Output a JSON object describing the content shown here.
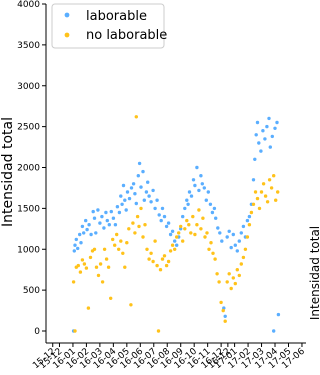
{
  "chart_data": {
    "type": "scatter",
    "xlabel": "",
    "ylabel": "Intensidad total",
    "right_ylabel": "Intensidad total",
    "ylim": [
      0,
      4000
    ],
    "yticks": [
      0,
      500,
      1000,
      1500,
      2000,
      2500,
      3000,
      3500,
      4000
    ],
    "x_tick_labels": [
      "15-12",
      "15-12",
      "16-01",
      "16-02",
      "16-03",
      "16-04",
      "16-05",
      "16-06",
      "16-07",
      "16-08",
      "16-09",
      "16-10",
      "16-11",
      "16-12",
      "16-12",
      "17-01",
      "17-02",
      "17-03",
      "17-04",
      "17-05",
      "17-06"
    ],
    "x_tick_months": [
      -1.0,
      -0.5,
      0.5,
      1.5,
      2.5,
      3.5,
      4.5,
      5.5,
      6.5,
      7.5,
      8.5,
      9.5,
      10.5,
      11.5,
      12.0,
      12.5,
      13.5,
      14.5,
      15.5,
      16.5,
      17.5
    ],
    "xlim_months": [
      -1.5,
      17.8
    ],
    "legend": {
      "position": "top-left"
    },
    "grid": false,
    "colors": {
      "laborable": "#5aaeff",
      "no_laborable": "#ffc21a"
    },
    "series": [
      {
        "name": "laborable",
        "color": "#5aaeff",
        "points": [
          [
            0.55,
            0
          ],
          [
            0.6,
            980
          ],
          [
            0.65,
            1050
          ],
          [
            0.75,
            1120
          ],
          [
            0.85,
            1010
          ],
          [
            1.0,
            1180
          ],
          [
            1.1,
            1080
          ],
          [
            1.2,
            1280
          ],
          [
            1.3,
            1200
          ],
          [
            1.45,
            1350
          ],
          [
            1.55,
            1240
          ],
          [
            1.7,
            1300
          ],
          [
            1.85,
            1180
          ],
          [
            2.0,
            1460
          ],
          [
            2.1,
            1380
          ],
          [
            2.2,
            1200
          ],
          [
            2.35,
            1480
          ],
          [
            2.5,
            1320
          ],
          [
            2.65,
            1400
          ],
          [
            2.8,
            1260
          ],
          [
            2.95,
            1450
          ],
          [
            3.05,
            1350
          ],
          [
            3.2,
            1300
          ],
          [
            3.35,
            1460
          ],
          [
            3.5,
            1380
          ],
          [
            3.65,
            1300
          ],
          [
            3.8,
            1520
          ],
          [
            3.95,
            1450
          ],
          [
            4.05,
            1650
          ],
          [
            4.15,
            1550
          ],
          [
            4.25,
            1780
          ],
          [
            4.35,
            1600
          ],
          [
            4.45,
            1480
          ],
          [
            4.55,
            1700
          ],
          [
            4.7,
            1620
          ],
          [
            4.85,
            1750
          ],
          [
            5.0,
            1800
          ],
          [
            5.1,
            1680
          ],
          [
            5.2,
            1560
          ],
          [
            5.35,
            1900
          ],
          [
            5.45,
            2050
          ],
          [
            5.55,
            1760
          ],
          [
            5.7,
            1950
          ],
          [
            5.8,
            1600
          ],
          [
            5.95,
            1700
          ],
          [
            6.05,
            1820
          ],
          [
            6.15,
            1650
          ],
          [
            6.3,
            1580
          ],
          [
            6.45,
            1720
          ],
          [
            6.6,
            1500
          ],
          [
            6.75,
            1600
          ],
          [
            6.9,
            1420
          ],
          [
            7.05,
            1350
          ],
          [
            7.15,
            1500
          ],
          [
            7.3,
            1400
          ],
          [
            7.45,
            1280
          ],
          [
            7.6,
            1320
          ],
          [
            7.75,
            1180
          ],
          [
            7.9,
            1220
          ],
          [
            8.05,
            1100
          ],
          [
            8.2,
            1050
          ],
          [
            8.35,
            1150
          ],
          [
            8.5,
            1250
          ],
          [
            8.65,
            1400
          ],
          [
            8.8,
            1500
          ],
          [
            8.95,
            1600
          ],
          [
            9.05,
            1550
          ],
          [
            9.15,
            1700
          ],
          [
            9.3,
            1650
          ],
          [
            9.45,
            1850
          ],
          [
            9.55,
            1780
          ],
          [
            9.7,
            2000
          ],
          [
            9.85,
            1720
          ],
          [
            10.0,
            1900
          ],
          [
            10.1,
            1800
          ],
          [
            10.25,
            1750
          ],
          [
            10.4,
            1600
          ],
          [
            10.55,
            1700
          ],
          [
            10.7,
            1550
          ],
          [
            10.85,
            1450
          ],
          [
            11.0,
            1500
          ],
          [
            11.1,
            1380
          ],
          [
            11.25,
            1260
          ],
          [
            11.4,
            1200
          ],
          [
            11.55,
            1100
          ],
          [
            11.7,
            280
          ],
          [
            11.8,
            180
          ],
          [
            11.95,
            1150
          ],
          [
            12.1,
            1220
          ],
          [
            12.25,
            1020
          ],
          [
            12.4,
            1180
          ],
          [
            12.55,
            1050
          ],
          [
            12.7,
            980
          ],
          [
            12.85,
            1100
          ],
          [
            13.0,
            1200
          ],
          [
            13.15,
            1280
          ],
          [
            13.3,
            1150
          ],
          [
            13.45,
            1350
          ],
          [
            13.6,
            1400
          ],
          [
            13.75,
            1550
          ],
          [
            13.9,
            1850
          ],
          [
            14.0,
            2100
          ],
          [
            14.1,
            2400
          ],
          [
            14.2,
            2550
          ],
          [
            14.3,
            2300
          ],
          [
            14.45,
            2200
          ],
          [
            14.6,
            2450
          ],
          [
            14.75,
            2350
          ],
          [
            14.9,
            2500
          ],
          [
            15.05,
            2600
          ],
          [
            15.15,
            2250
          ],
          [
            15.3,
            2380
          ],
          [
            15.4,
            0
          ],
          [
            15.5,
            2480
          ],
          [
            15.65,
            2550
          ],
          [
            15.75,
            200
          ]
        ]
      },
      {
        "name": "no laborable",
        "color": "#ffc21a",
        "points": [
          [
            0.55,
            600
          ],
          [
            0.65,
            0
          ],
          [
            0.75,
            780
          ],
          [
            0.9,
            800
          ],
          [
            1.05,
            720
          ],
          [
            1.2,
            870
          ],
          [
            1.35,
            820
          ],
          [
            1.5,
            770
          ],
          [
            1.65,
            280
          ],
          [
            1.8,
            900
          ],
          [
            1.95,
            980
          ],
          [
            2.1,
            1000
          ],
          [
            2.25,
            780
          ],
          [
            2.4,
            680
          ],
          [
            2.55,
            820
          ],
          [
            2.7,
            600
          ],
          [
            2.85,
            1000
          ],
          [
            3.0,
            880
          ],
          [
            3.15,
            780
          ],
          [
            3.3,
            400
          ],
          [
            3.45,
            1120
          ],
          [
            3.6,
            1050
          ],
          [
            3.75,
            1180
          ],
          [
            3.9,
            1000
          ],
          [
            4.05,
            1100
          ],
          [
            4.2,
            950
          ],
          [
            4.35,
            780
          ],
          [
            4.5,
            1080
          ],
          [
            4.65,
            1250
          ],
          [
            4.8,
            320
          ],
          [
            4.95,
            1320
          ],
          [
            5.1,
            1200
          ],
          [
            5.2,
            2620
          ],
          [
            5.3,
            1400
          ],
          [
            5.4,
            1280
          ],
          [
            5.55,
            1500
          ],
          [
            5.7,
            1150
          ],
          [
            5.85,
            1300
          ],
          [
            6.0,
            1000
          ],
          [
            6.15,
            880
          ],
          [
            6.3,
            950
          ],
          [
            6.45,
            850
          ],
          [
            6.6,
            1100
          ],
          [
            6.75,
            800
          ],
          [
            6.85,
            0
          ],
          [
            7.0,
            750
          ],
          [
            7.15,
            880
          ],
          [
            7.3,
            920
          ],
          [
            7.45,
            800
          ],
          [
            7.6,
            850
          ],
          [
            7.75,
            980
          ],
          [
            7.9,
            1050
          ],
          [
            8.05,
            1000
          ],
          [
            8.2,
            1150
          ],
          [
            8.35,
            1200
          ],
          [
            8.5,
            1280
          ],
          [
            8.65,
            1100
          ],
          [
            8.8,
            1250
          ],
          [
            8.95,
            1350
          ],
          [
            9.1,
            1300
          ],
          [
            9.25,
            1200
          ],
          [
            9.4,
            1400
          ],
          [
            9.55,
            1180
          ],
          [
            9.7,
            1300
          ],
          [
            9.85,
            1480
          ],
          [
            10.0,
            1250
          ],
          [
            10.15,
            1380
          ],
          [
            10.3,
            1150
          ],
          [
            10.45,
            1200
          ],
          [
            10.6,
            1000
          ],
          [
            10.75,
            1080
          ],
          [
            10.9,
            950
          ],
          [
            11.05,
            880
          ],
          [
            11.2,
            700
          ],
          [
            11.35,
            600
          ],
          [
            11.5,
            350
          ],
          [
            11.65,
            250
          ],
          [
            11.8,
            120
          ],
          [
            11.95,
            600
          ],
          [
            12.1,
            700
          ],
          [
            12.25,
            520
          ],
          [
            12.4,
            650
          ],
          [
            12.55,
            580
          ],
          [
            12.7,
            750
          ],
          [
            12.85,
            680
          ],
          [
            13.0,
            820
          ],
          [
            13.15,
            900
          ],
          [
            13.3,
            1000
          ],
          [
            13.45,
            1150
          ],
          [
            13.6,
            1300
          ],
          [
            13.75,
            1450
          ],
          [
            13.9,
            1550
          ],
          [
            14.05,
            1700
          ],
          [
            14.2,
            1620
          ],
          [
            14.35,
            1500
          ],
          [
            14.5,
            1700
          ],
          [
            14.65,
            1800
          ],
          [
            14.8,
            1650
          ],
          [
            14.95,
            1580
          ],
          [
            15.1,
            1850
          ],
          [
            15.25,
            1750
          ],
          [
            15.4,
            1900
          ],
          [
            15.55,
            1600
          ],
          [
            15.7,
            1700
          ]
        ]
      }
    ]
  }
}
